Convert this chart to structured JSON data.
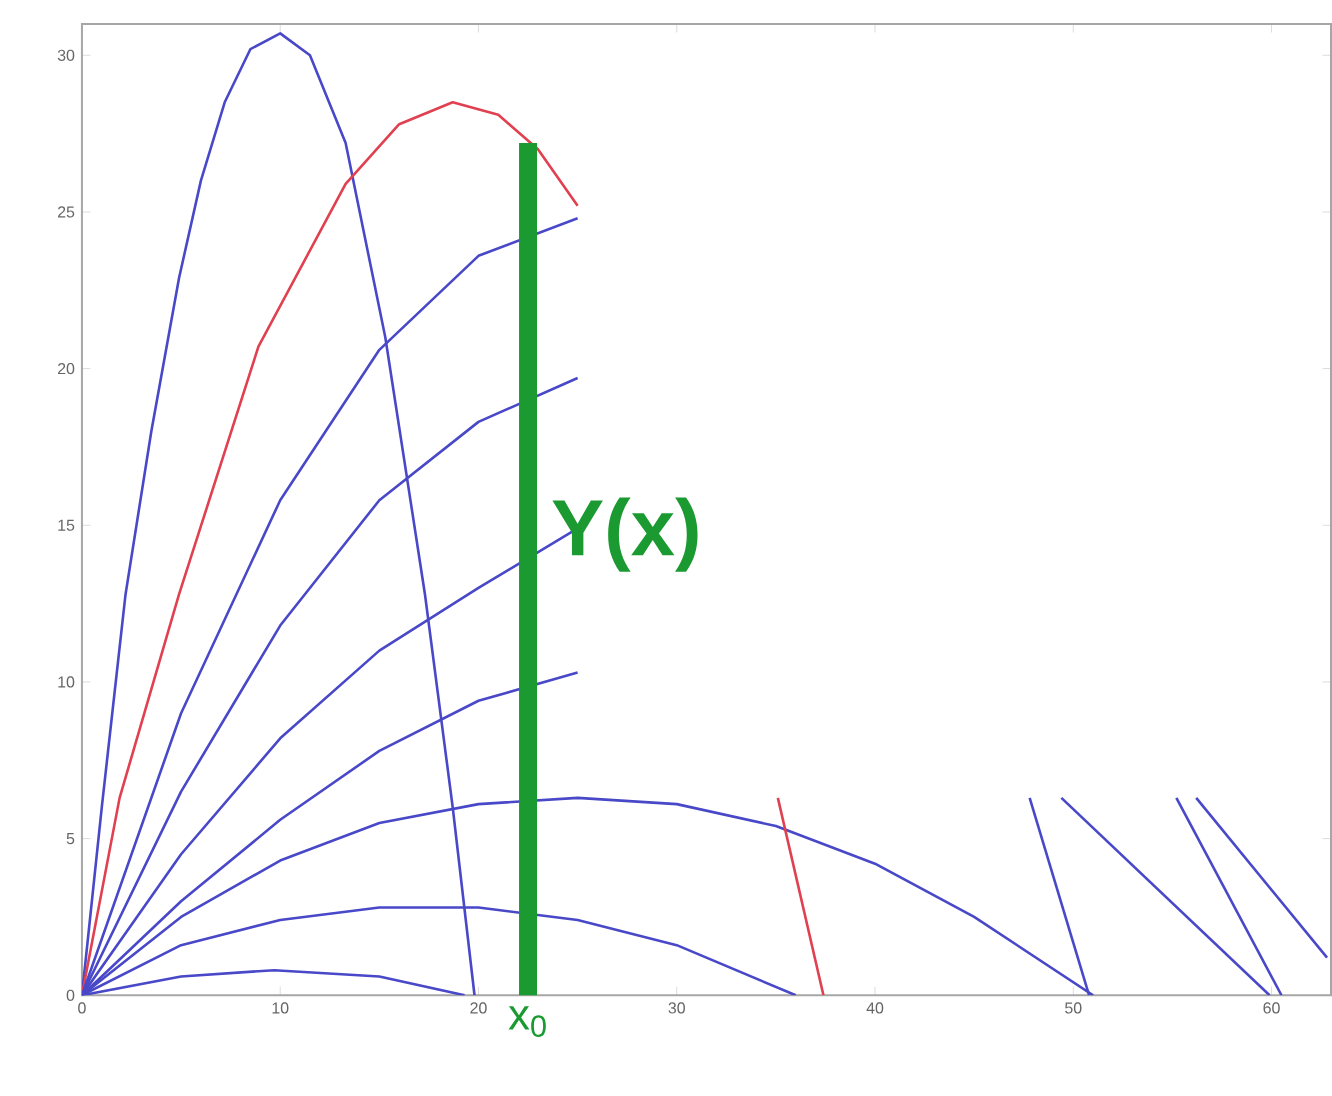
{
  "chart_data": {
    "type": "line",
    "xlim": [
      0,
      63
    ],
    "ylim": [
      0,
      31
    ],
    "xticks": [
      0,
      10,
      20,
      30,
      40,
      50,
      60
    ],
    "yticks": [
      0,
      5,
      10,
      15,
      20,
      25,
      30
    ],
    "marker": "none",
    "line_style": "solid",
    "grid": false,
    "annotations": [
      {
        "text": "Y(x)",
        "x": 22.5,
        "y": 14.7
      },
      {
        "text": "x$_{0}$",
        "x": 22.5,
        "y": 0
      }
    ],
    "series": [
      {
        "color": "#4848c8",
        "x": [
          0,
          1,
          2.2,
          3.5,
          4.9,
          6,
          7.2,
          8.5,
          10,
          11.5,
          13.3,
          15.3,
          17.3,
          18.7,
          19.8
        ],
        "values": [
          0,
          6,
          12.8,
          18,
          22.9,
          26,
          28.5,
          30.2,
          30.7,
          30,
          27.2,
          21,
          12.8,
          6,
          0
        ]
      },
      {
        "color": "#e0404f",
        "x": [
          0,
          1.9,
          4.9,
          8.9,
          13.3,
          16,
          18.7,
          21,
          23,
          25
        ],
        "values": [
          0,
          6.3,
          12.8,
          20.7,
          25.9,
          27.8,
          28.5,
          28.1,
          27,
          25.2
        ]
      },
      {
        "color": "#4848c8",
        "x": [
          0,
          5,
          10,
          15,
          20,
          25
        ],
        "values": [
          0,
          9,
          15.8,
          20.6,
          23.6,
          24.8
        ]
      },
      {
        "color": "#4848c8",
        "x": [
          0,
          5,
          10,
          15,
          20,
          25
        ],
        "values": [
          0,
          6.5,
          11.8,
          15.8,
          18.3,
          19.7
        ]
      },
      {
        "color": "#4848c8",
        "x": [
          0,
          5,
          10,
          15,
          20,
          25
        ],
        "values": [
          0,
          4.5,
          8.2,
          11,
          13,
          14.9
        ]
      },
      {
        "color": "#4848c8",
        "x": [
          0,
          5,
          10,
          15,
          20,
          25
        ],
        "values": [
          0,
          3,
          5.6,
          7.8,
          9.4,
          10.3
        ]
      },
      {
        "color": "#4848c8",
        "x": [
          0,
          5,
          10,
          15,
          20,
          25,
          30,
          35,
          40,
          45,
          51
        ],
        "values": [
          0,
          2.5,
          4.3,
          5.5,
          6.1,
          6.3,
          6.1,
          5.4,
          4.2,
          2.5,
          0
        ]
      },
      {
        "color": "#4848c8",
        "x": [
          0,
          5,
          10,
          15,
          20,
          25,
          30,
          36
        ],
        "values": [
          0,
          1.6,
          2.4,
          2.8,
          2.8,
          2.4,
          1.6,
          0
        ]
      },
      {
        "color": "#4848c8",
        "x": [
          0,
          5,
          9.7,
          15,
          19.3
        ],
        "values": [
          0,
          0.6,
          0.8,
          0.6,
          0
        ]
      },
      {
        "color": "#e0404f",
        "x": [
          35.1,
          37.4
        ],
        "values": [
          6.3,
          0
        ]
      },
      {
        "color": "#4848c8",
        "x": [
          47.8,
          50.8
        ],
        "values": [
          6.3,
          0
        ]
      },
      {
        "color": "#4848c8",
        "x": [
          49.4,
          59.9
        ],
        "values": [
          6.3,
          0
        ]
      },
      {
        "color": "#4848c8",
        "x": [
          55.2,
          60.5
        ],
        "values": [
          6.3,
          0
        ]
      },
      {
        "color": "#4848c8",
        "x": [
          56.2,
          62.8
        ],
        "values": [
          6.3,
          1.2
        ]
      },
      {
        "type": "bar",
        "color": "#1a9a30",
        "x": [
          22.5
        ],
        "values": [
          27.2
        ]
      }
    ]
  }
}
